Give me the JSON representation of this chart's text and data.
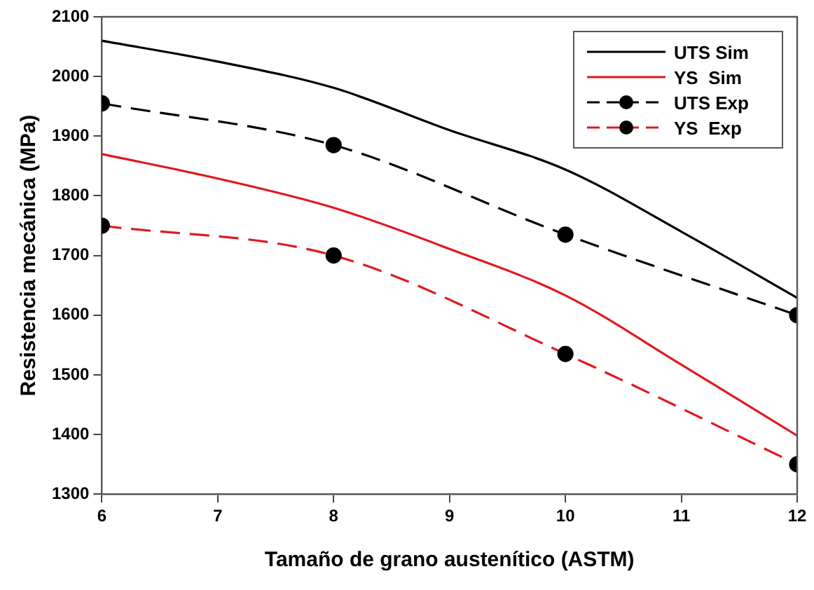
{
  "chart_data": {
    "type": "line",
    "xlabel": "Tamaño de grano austenítico (ASTM)",
    "ylabel": "Resistencia mecánica (MPa)",
    "xlim": [
      6,
      12
    ],
    "xticks": [
      6,
      7,
      8,
      9,
      10,
      11,
      12
    ],
    "ylim": [
      1300,
      2100
    ],
    "yticks": [
      1300,
      1400,
      1500,
      1600,
      1700,
      1800,
      1900,
      2000,
      2100
    ],
    "grid": false,
    "legend": "top right",
    "series": [
      {
        "name": "UTS Sim",
        "color": "#000000",
        "x": [
          6,
          7,
          8,
          9,
          10,
          11,
          12
        ],
        "values": [
          2060,
          2025,
          1981,
          1910,
          1844,
          1740,
          1629
        ],
        "line_style": "solid",
        "marker": "none"
      },
      {
        "name": "YS  Sim",
        "color": "#e0191e",
        "x": [
          6,
          7,
          8,
          9,
          10,
          11,
          12
        ],
        "values": [
          1870,
          1829,
          1780,
          1711,
          1633,
          1517,
          1398
        ],
        "line_style": "solid",
        "marker": "none"
      },
      {
        "name": "UTS Exp",
        "color": "#000000",
        "x": [
          6,
          8,
          10,
          12
        ],
        "values": [
          1955,
          1885,
          1735,
          1600
        ],
        "line_style": "dashed",
        "marker": "circle"
      },
      {
        "name": "YS  Exp",
        "color": "#e0191e",
        "x": [
          6,
          8,
          10,
          12
        ],
        "values": [
          1750,
          1700,
          1535,
          1350
        ],
        "line_style": "dashed",
        "marker": "circle"
      }
    ]
  }
}
